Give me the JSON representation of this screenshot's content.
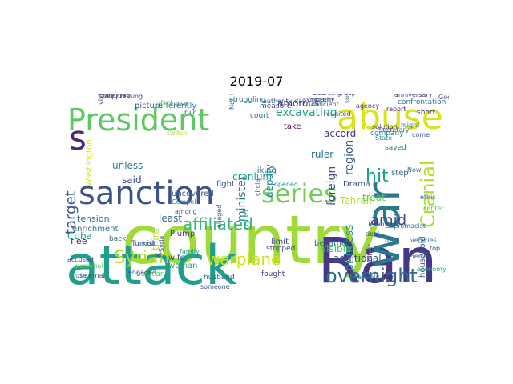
{
  "title": "2019-07",
  "cloud": {
    "words": [
      {
        "text": "country",
        "color": "#a0da39"
      },
      {
        "text": "attack",
        "color": "#1f9e89"
      },
      {
        "text": "Ran",
        "color": "#443983"
      },
      {
        "text": "President",
        "color": "#5ec962"
      },
      {
        "text": "abuse",
        "color": "#dae319"
      },
      {
        "text": "sanction",
        "color": "#3b528b"
      },
      {
        "text": "series",
        "color": "#6ece58"
      },
      {
        "text": "war",
        "color": "#2a788e"
      },
      {
        "text": "s",
        "color": "#482878"
      },
      {
        "text": "hit",
        "color": "#1fa187"
      },
      {
        "text": "overnight",
        "color": "#31688e"
      },
      {
        "text": "Cranial",
        "color": "#b5de2b"
      },
      {
        "text": "affiliated",
        "color": "#35b779"
      },
      {
        "text": "Syrian",
        "color": "#addc30"
      },
      {
        "text": "warplane",
        "color": "#cde11d"
      },
      {
        "text": "amid",
        "color": "#3e4989"
      },
      {
        "text": "target",
        "color": "#3b528b"
      },
      {
        "text": "excavating",
        "color": "#20a486"
      },
      {
        "text": "amorous",
        "color": "#482475"
      },
      {
        "text": "minister",
        "color": "#2a788e"
      },
      {
        "text": "deputy",
        "color": "#26828e"
      },
      {
        "text": "cranium",
        "color": "#1f9a8a"
      },
      {
        "text": "foreign",
        "color": "#3e4a89"
      },
      {
        "text": "accord",
        "color": "#46337e"
      },
      {
        "text": "ruler",
        "color": "#2c728e"
      },
      {
        "text": "region",
        "color": "#375a8c"
      },
      {
        "text": "take",
        "color": "#440154"
      },
      {
        "text": "unless",
        "color": "#277f8e"
      },
      {
        "text": "said",
        "color": "#3f4788"
      },
      {
        "text": "least",
        "color": "#365c8d"
      },
      {
        "text": "tension",
        "color": "#31688e"
      },
      {
        "text": "enrichment",
        "color": "#2d708e"
      },
      {
        "text": "flee",
        "color": "#482173"
      },
      {
        "text": "Cuba",
        "color": "#1e9c89"
      },
      {
        "text": "Washington",
        "color": "#d8e219"
      },
      {
        "text": "step",
        "color": "#31678e"
      },
      {
        "text": "household",
        "color": "#3a538b"
      },
      {
        "text": "Tehran",
        "color": "#b8de29"
      },
      {
        "text": "treat",
        "color": "#5ac864"
      },
      {
        "text": "princess",
        "color": "#21918c"
      },
      {
        "text": "Drama",
        "color": "#3d4e8a"
      },
      {
        "text": "became",
        "color": "#2a788e"
      },
      {
        "text": "visible",
        "color": "#46c06f"
      },
      {
        "text": "additional",
        "color": "#3b528b"
      },
      {
        "text": "limit",
        "color": "#404688"
      },
      {
        "text": "relief",
        "color": "#1fa088"
      },
      {
        "text": "Plump",
        "color": "#443a83"
      },
      {
        "text": "third",
        "color": "#c2df23"
      },
      {
        "text": "wife",
        "color": "#3f4889"
      },
      {
        "text": "woman",
        "color": "#22a785"
      },
      {
        "text": "uncovered",
        "color": "#3a548c"
      },
      {
        "text": "differently",
        "color": "#228d8d"
      },
      {
        "text": "picture",
        "color": "#365d8d"
      },
      {
        "text": "coincided",
        "color": "#481f70"
      },
      {
        "text": "struggling",
        "color": "#2e6e8e"
      },
      {
        "text": "measure",
        "color": "#3f4889"
      },
      {
        "text": "confrontation",
        "color": "#2b748e"
      },
      {
        "text": "anniversary",
        "color": "#46337e"
      },
      {
        "text": "Goodwins",
        "color": "#433e85"
      },
      {
        "text": "court",
        "color": "#2c718e"
      },
      {
        "text": "liking",
        "color": "#2d708e"
      },
      {
        "text": "fight",
        "color": "#3e4c8a"
      },
      {
        "text": "company",
        "color": "#23898e"
      },
      {
        "text": "Secretary",
        "color": "#31688e"
      },
      {
        "text": "saved",
        "color": "#2a788e"
      },
      {
        "text": "short",
        "color": "#463480"
      },
      {
        "text": "Now",
        "color": "#2a768e"
      },
      {
        "text": "Turkish",
        "color": "#39568c"
      },
      {
        "text": "nuclear",
        "color": "#4ac16d"
      },
      {
        "text": "husband",
        "color": "#31688e"
      },
      {
        "text": "fought",
        "color": "#433d84"
      },
      {
        "text": "stopped",
        "color": "#3b518b"
      },
      {
        "text": "economy",
        "color": "#25ab82"
      },
      {
        "text": "accused",
        "color": "#3a548c"
      },
      {
        "text": "back",
        "color": "#2f6c8e"
      },
      {
        "text": "engaged",
        "color": "#3e4989"
      },
      {
        "text": "internal",
        "color": "#35608d"
      },
      {
        "text": "hair",
        "color": "#482575"
      },
      {
        "text": "Pierre",
        "color": "#3c508b"
      },
      {
        "text": "drug",
        "color": "#2a788e"
      },
      {
        "text": "bitter",
        "color": "#482979"
      },
      {
        "text": "deal",
        "color": "#3e4a89"
      },
      {
        "text": "might",
        "color": "#2c738e"
      },
      {
        "text": "State",
        "color": "#24868e"
      },
      {
        "text": "report",
        "color": "#472d7b"
      },
      {
        "text": "killed",
        "color": "#34608d"
      },
      {
        "text": "visited",
        "color": "#39568c"
      },
      {
        "text": "reunited",
        "color": "#3f4788"
      },
      {
        "text": "held",
        "color": "#2e6f8e"
      },
      {
        "text": "come",
        "color": "#3b528b"
      },
      {
        "text": "center",
        "color": "#4fc46a"
      },
      {
        "text": "ethic",
        "color": "#2d708e"
      },
      {
        "text": "top",
        "color": "#3b518b"
      },
      {
        "text": "use",
        "color": "#2a778e"
      },
      {
        "text": "personal",
        "color": "#5ec962"
      },
      {
        "text": "Syria",
        "color": "#443983"
      },
      {
        "text": "family",
        "color": "#1f998a"
      },
      {
        "text": "first",
        "color": "#9fda3a"
      },
      {
        "text": "Tetany",
        "color": "#3f4788"
      },
      {
        "text": "agency",
        "color": "#472c7a"
      },
      {
        "text": "suppressing",
        "color": "#46327e"
      },
      {
        "text": "authority day",
        "color": "#3d4d8a"
      },
      {
        "text": "deficient",
        "color": "#31688e"
      },
      {
        "text": "vehicles",
        "color": "#2a778e"
      },
      {
        "text": "suspect",
        "color": "#3b518b"
      },
      {
        "text": "concern",
        "color": "#3d4e8a"
      },
      {
        "text": "Bedroll group",
        "color": "#3e4a89"
      },
      {
        "text": "opened",
        "color": "#1f988b"
      },
      {
        "text": "Compel",
        "color": "#2a788e"
      },
      {
        "text": "alleged",
        "color": "#365c8d"
      },
      {
        "text": "circle",
        "color": "#31688e"
      },
      {
        "text": "ruin",
        "color": "#46337e"
      },
      {
        "text": "switch",
        "color": "#addc30"
      },
      {
        "text": "among",
        "color": "#3b528b"
      },
      {
        "text": "mult",
        "color": "#2c728e"
      },
      {
        "text": "ed",
        "color": "#3e4989"
      },
      {
        "text": "someone",
        "color": "#3a548c"
      },
      {
        "text": "Nell freedom",
        "color": "#2e6e8e"
      },
      {
        "text": "supremacist",
        "color": "#31688e"
      },
      {
        "text": "relatively",
        "color": "#2a788e"
      },
      {
        "text": "sympathy",
        "color": "#3b528b"
      },
      {
        "text": "solution",
        "color": "#46337e"
      }
    ]
  }
}
